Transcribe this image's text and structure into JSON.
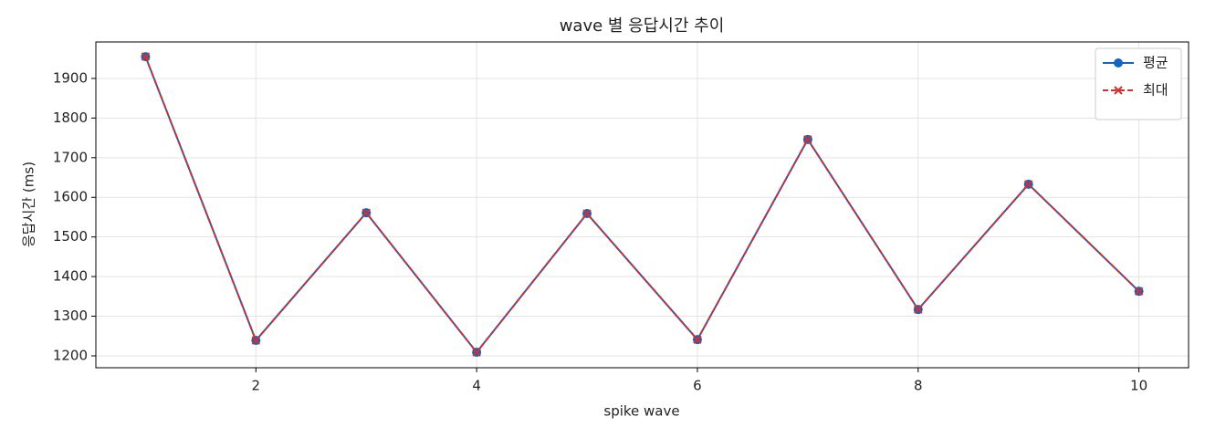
{
  "chart_data": {
    "type": "line",
    "title": "wave 별 응답시간 추이",
    "x_label": "spike wave",
    "y_label": "응답시간 (ms)",
    "x": [
      1,
      2,
      3,
      4,
      5,
      6,
      7,
      8,
      9,
      10
    ],
    "series": [
      {
        "name": "평균",
        "color": "#1565c0",
        "marker": "o",
        "linestyle": "solid",
        "values": [
          1955,
          1239,
          1561,
          1209,
          1559,
          1241,
          1746,
          1317,
          1633,
          1363
        ]
      },
      {
        "name": "최대",
        "color": "#d32f2f",
        "marker": "x",
        "linestyle": "dashed",
        "values": [
          1955,
          1239,
          1561,
          1209,
          1559,
          1241,
          1746,
          1317,
          1633,
          1363
        ]
      }
    ],
    "xlim": [
      0.55,
      10.45
    ],
    "ylim": [
      1170,
      1992
    ],
    "xticks": [
      2,
      4,
      6,
      8,
      10
    ],
    "yticks": [
      1200,
      1300,
      1400,
      1500,
      1600,
      1700,
      1800,
      1900
    ],
    "grid": true,
    "legend": "upper right"
  }
}
